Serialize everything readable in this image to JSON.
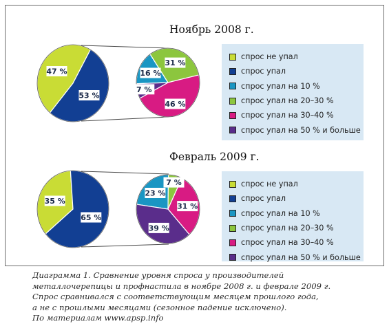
{
  "colors": {
    "not_fell": "#c9dc35",
    "fell": "#123f93",
    "fell_10": "#1a96c3",
    "fell_20_30": "#8cc63e",
    "fell_30_40": "#d81b83",
    "fell_50_plus": "#5a2d8b"
  },
  "chart_data": [
    {
      "type": "pie",
      "title": "Ноябрь 2008 г.",
      "main_pie": [
        {
          "label": "спрос не упал",
          "value": 47
        },
        {
          "label": "спрос упал",
          "value": 53
        }
      ],
      "breakdown_pie": [
        {
          "label": "спрос упал на 10 %",
          "value": 16
        },
        {
          "label": "спрос упал на 20–30 %",
          "value": 31
        },
        {
          "label": "спрос упал на 30–40 %",
          "value": 46
        },
        {
          "label": "спрос упал на 50 % и больше",
          "value": 7
        }
      ],
      "legend": [
        "спрос не упал",
        "спрос упал",
        "спрос упал на 10 %",
        "спрос упал на 20–30 %",
        "спрос упал на 30–40 %",
        "спрос упал на 50 % и больше"
      ]
    },
    {
      "type": "pie",
      "title": "Февраль 2009 г.",
      "main_pie": [
        {
          "label": "спрос не упал",
          "value": 35
        },
        {
          "label": "спрос упал",
          "value": 65
        }
      ],
      "breakdown_pie": [
        {
          "label": "спрос упал на 10 %",
          "value": 23
        },
        {
          "label": "спрос упал на 20–30 %",
          "value": 7
        },
        {
          "label": "спрос упал на 30–40 %",
          "value": 31
        },
        {
          "label": "спрос упал на 50 % и больше",
          "value": 39
        }
      ],
      "legend": [
        "спрос не упал",
        "спрос упал",
        "спрос упал на 10 %",
        "спрос упал на 20–30 %",
        "спрос упал на 30–40 %",
        "спрос упал на 50 % и больше"
      ]
    }
  ],
  "caption": [
    "Диаграмма 1. Сравнение уровня спроса у производителей",
    "металлочерепицы и профнастила в ноябре 2008 г. и феврале 2009 г.",
    "Спрос сравнивался с соответствующим месяцем прошлого года,",
    "а не с прошлыми месяцами (сезонное падение исключено).",
    "По материалам www.apsp.info"
  ]
}
